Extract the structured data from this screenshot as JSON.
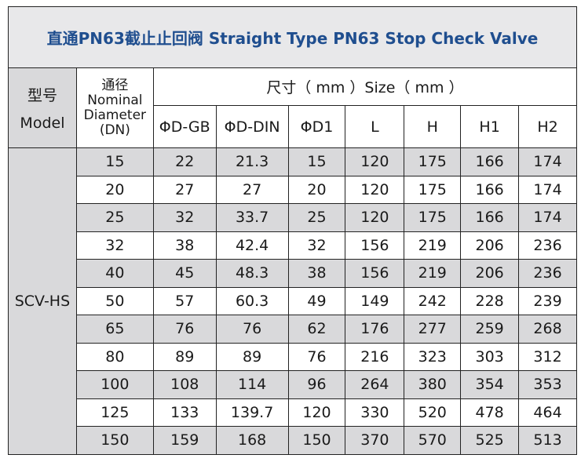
{
  "title": "直通PN63截止止回阀   Straight Type PN63 Stop Check Valve",
  "header": {
    "model_cn": "型号",
    "model_en": "Model",
    "dn_cn": "通径",
    "dn_en1": "Nominal",
    "dn_en2": "Diameter",
    "dn_en3": "(DN)",
    "size": "尺寸（ mm ）Size（ mm ）",
    "columns": [
      "ΦD-GB",
      "ΦD-DIN",
      "ΦD1",
      "L",
      "H",
      "H1",
      "H2"
    ]
  },
  "model": "SCV-HS",
  "rows": [
    [
      "15",
      "22",
      "21.3",
      "15",
      "120",
      "175",
      "166",
      "174"
    ],
    [
      "20",
      "27",
      "27",
      "20",
      "120",
      "175",
      "166",
      "174"
    ],
    [
      "25",
      "32",
      "33.7",
      "25",
      "120",
      "175",
      "166",
      "174"
    ],
    [
      "32",
      "38",
      "42.4",
      "32",
      "156",
      "219",
      "206",
      "236"
    ],
    [
      "40",
      "45",
      "48.3",
      "38",
      "156",
      "219",
      "206",
      "236"
    ],
    [
      "50",
      "57",
      "60.3",
      "49",
      "149",
      "242",
      "228",
      "239"
    ],
    [
      "65",
      "76",
      "76",
      "62",
      "176",
      "277",
      "259",
      "268"
    ],
    [
      "80",
      "89",
      "89",
      "76",
      "216",
      "323",
      "303",
      "312"
    ],
    [
      "100",
      "108",
      "114",
      "96",
      "264",
      "380",
      "354",
      "353"
    ],
    [
      "125",
      "133",
      "139.7",
      "120",
      "330",
      "520",
      "478",
      "464"
    ],
    [
      "150",
      "159",
      "168",
      "150",
      "370",
      "570",
      "525",
      "513"
    ]
  ],
  "colors": {
    "title_text": "#1f4e8f",
    "title_bg": "#e8e8ea",
    "stripe": "#d9d9db"
  }
}
